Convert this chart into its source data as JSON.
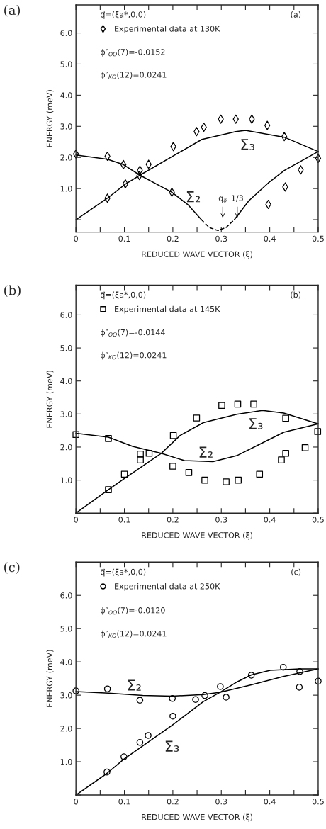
{
  "chart_data": [
    {
      "type": "line",
      "title": "(a)",
      "xlabel": "REDUCED WAVE VECTOR (ξ)",
      "ylabel": "ENERGY (meV)",
      "xlim": [
        0,
        0.5
      ],
      "ylim": [
        -0.4,
        6.9
      ],
      "xticks": [
        0,
        {
          "value": 0.05,
          "label": null
        },
        0.1,
        {
          "value": 0.15,
          "label": null
        },
        0.2,
        {
          "value": 0.25,
          "label": null
        },
        0.3,
        {
          "value": 0.35,
          "label": null
        },
        0.4,
        {
          "value": 0.45,
          "label": null
        },
        0.5
      ],
      "yticks": [
        {
          "value": 0,
          "label": null
        },
        {
          "value": 1,
          "label": "1.0"
        },
        {
          "value": 2,
          "label": "2.0"
        },
        {
          "value": 3,
          "label": "3.0"
        },
        {
          "value": 4,
          "label": "4.0"
        },
        {
          "value": 5,
          "label": "5.0"
        },
        {
          "value": 6,
          "label": "6.0"
        }
      ],
      "legend": "top left",
      "series": [
        {
          "type": "scatter",
          "name": "Experimental data at 130K",
          "marker": "diamond",
          "color": "#000000",
          "x": [
            0,
            0.065,
            0.065,
            0.098,
            0.102,
            0.132,
            0.131,
            0.15,
            0.201,
            0.198,
            0.249,
            0.264,
            0.299,
            0.33,
            0.363,
            0.395,
            0.397,
            0.43,
            0.432,
            0.464,
            0.5
          ],
          "values": [
            2.11,
            2.04,
            0.69,
            1.77,
            1.15,
            1.59,
            1.42,
            1.78,
            2.35,
            0.88,
            2.83,
            2.97,
            3.23,
            3.23,
            3.23,
            3.03,
            0.49,
            2.67,
            1.05,
            1.6,
            1.97
          ]
        },
        {
          "line_style": "solid",
          "color": "#000000",
          "x": [
            0,
            0.065,
            0.102,
            0.132,
            0.2,
            0.26,
            0.33,
            0.35,
            0.43,
            0.5
          ],
          "values": [
            0,
            0.69,
            1.14,
            1.43,
            2.04,
            2.58,
            2.83,
            2.87,
            2.65,
            2.19
          ]
        },
        {
          "line_style": "solid",
          "color": "#000000",
          "x": [
            0,
            0.065,
            0.098,
            0.132,
            0.198,
            0.232,
            0.259
          ],
          "values": [
            2.08,
            1.94,
            1.77,
            1.43,
            0.88,
            0.47,
            0
          ]
        },
        {
          "line_style": "dashed",
          "color": "#000000",
          "x": [
            0.259,
            0.275,
            0.293,
            0.31,
            0.327
          ],
          "values": [
            0,
            -0.25,
            -0.35,
            -0.25,
            0
          ]
        },
        {
          "line_style": "solid",
          "color": "#000000",
          "x": [
            0.327,
            0.357,
            0.397,
            0.43,
            0.5
          ],
          "values": [
            0,
            0.61,
            1.18,
            1.58,
            2.19
          ]
        }
      ],
      "annotations": [
        "q⃗=(ξa*,0,0)",
        "ϕ″$_{OO}$(7)=-0.0152",
        "ϕ″$_{KO}$(12)=0.0241",
        "(a)",
        "Σ₂",
        "Σ₃",
        "q$_{δ}$",
        "1/3"
      ]
    },
    {
      "type": "line",
      "title": "(b)",
      "xlabel": "REDUCED WAVE VECTOR (ξ)",
      "ylabel": "ENERGY (meV)",
      "xlim": [
        0,
        0.5
      ],
      "ylim": [
        0,
        6.9
      ],
      "xticks": [
        0,
        {
          "value": 0.05,
          "label": null
        },
        0.1,
        {
          "value": 0.15,
          "label": null
        },
        0.2,
        {
          "value": 0.25,
          "label": null
        },
        0.3,
        {
          "value": 0.35,
          "label": null
        },
        0.4,
        {
          "value": 0.45,
          "label": null
        },
        0.5
      ],
      "yticks": [
        {
          "value": 0,
          "label": null
        },
        {
          "value": 1,
          "label": "1.0"
        },
        {
          "value": 2,
          "label": "2.0"
        },
        {
          "value": 3,
          "label": "3.0"
        },
        {
          "value": 4,
          "label": "4.0"
        },
        {
          "value": 5,
          "label": "5.0"
        },
        {
          "value": 6,
          "label": "6.0"
        }
      ],
      "legend": "top left",
      "series": [
        {
          "type": "scatter",
          "name": "Experimental data at 145K",
          "marker": "square",
          "color": "#000000",
          "x": [
            0,
            0.067,
            0.067,
            0.1,
            0.133,
            0.133,
            0.151,
            0.201,
            0.2,
            0.233,
            0.249,
            0.266,
            0.301,
            0.31,
            0.334,
            0.335,
            0.367,
            0.379,
            0.424,
            0.433,
            0.433,
            0.473,
            0.499
          ],
          "values": [
            2.38,
            2.26,
            0.71,
            1.18,
            1.79,
            1.61,
            1.81,
            2.35,
            1.42,
            1.23,
            2.88,
            1.0,
            3.26,
            0.95,
            3.3,
            1.0,
            3.3,
            1.18,
            1.61,
            2.87,
            1.81,
            1.98,
            2.47
          ]
        },
        {
          "line_style": "solid",
          "color": "#000000",
          "x": [
            0,
            0.067,
            0.1,
            0.176,
            0.215,
            0.263,
            0.332,
            0.385,
            0.429,
            0.5
          ],
          "values": [
            0,
            0.71,
            1.05,
            1.81,
            2.35,
            2.74,
            2.99,
            3.11,
            3.03,
            2.7
          ]
        },
        {
          "line_style": "solid",
          "color": "#000000",
          "x": [
            0,
            0.067,
            0.117,
            0.176,
            0.224,
            0.283,
            0.332,
            0.38,
            0.429,
            0.5
          ],
          "values": [
            2.42,
            2.3,
            2.02,
            1.81,
            1.59,
            1.56,
            1.74,
            2.09,
            2.45,
            2.7
          ]
        }
      ],
      "annotations": [
        "q⃗=(ξa*,0,0)",
        "ϕ″$_{OO}$(7)=-0.0144",
        "ϕ″$_{KO}$(12)=0.0241",
        "(b)",
        "Σ₂",
        "Σ₃"
      ]
    },
    {
      "type": "line",
      "title": "(c)",
      "xlabel": "REDUCED WAVE VECTOR (ξ)",
      "ylabel": "ENERGY (meV)",
      "xlim": [
        0,
        0.5
      ],
      "ylim": [
        0,
        7.0
      ],
      "xticks": [
        0,
        {
          "value": 0.05,
          "label": null
        },
        0.1,
        {
          "value": 0.15,
          "label": null
        },
        0.2,
        {
          "value": 0.25,
          "label": null
        },
        0.3,
        {
          "value": 0.35,
          "label": null
        },
        0.4,
        {
          "value": 0.45,
          "label": null
        },
        0.5
      ],
      "yticks": [
        {
          "value": 0,
          "label": null
        },
        {
          "value": 1,
          "label": "1.0"
        },
        {
          "value": 2,
          "label": "2.0"
        },
        {
          "value": 3,
          "label": "3.0"
        },
        {
          "value": 4,
          "label": "4.0"
        },
        {
          "value": 5,
          "label": "5.0"
        },
        {
          "value": 6,
          "label": "6.0"
        }
      ],
      "legend": "top left",
      "series": [
        {
          "type": "scatter",
          "name": "Experimental data at 250K",
          "marker": "circle",
          "color": "#000000",
          "x": [
            0,
            0.065,
            0.132,
            0.099,
            0.064,
            0.132,
            0.149,
            0.199,
            0.2,
            0.247,
            0.266,
            0.298,
            0.31,
            0.362,
            0.428,
            0.462,
            0.461,
            0.5
          ],
          "values": [
            3.13,
            3.19,
            2.85,
            1.15,
            0.69,
            1.58,
            1.79,
            2.9,
            2.37,
            2.87,
            2.99,
            3.26,
            2.94,
            3.6,
            3.84,
            3.71,
            3.24,
            3.42
          ]
        },
        {
          "line_style": "solid",
          "color": "#000000",
          "x": [
            0,
            0.064,
            0.099,
            0.199,
            0.263,
            0.298,
            0.33,
            0.362,
            0.401,
            0.462,
            0.5
          ],
          "values": [
            0,
            0.65,
            1.08,
            2.1,
            2.81,
            3.09,
            3.38,
            3.61,
            3.75,
            3.79,
            3.79
          ]
        },
        {
          "line_style": "solid",
          "color": "#000000",
          "x": [
            0,
            0.067,
            0.138,
            0.199,
            0.263,
            0.298,
            0.362,
            0.428,
            0.5
          ],
          "values": [
            3.11,
            3.06,
            2.99,
            2.97,
            3.02,
            3.09,
            3.31,
            3.56,
            3.79
          ]
        }
      ],
      "annotations": [
        "q⃗=(ξa*,0,0)",
        "ϕ″$_{OO}$(7)=-0.0120",
        "ϕ″$_{KO}$(12)=0.0241",
        "(c)",
        "Σ₂",
        "Σ₃"
      ]
    }
  ]
}
